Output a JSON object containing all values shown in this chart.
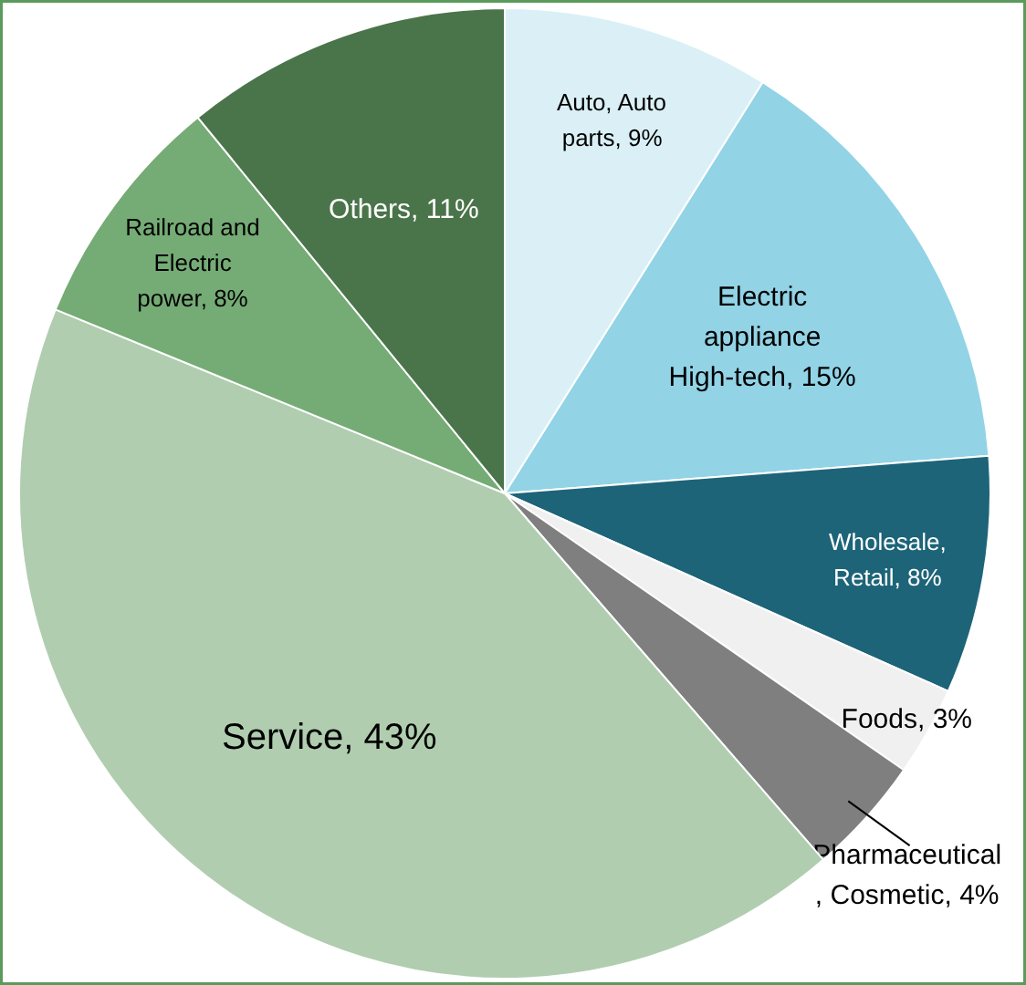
{
  "chart_data": {
    "type": "pie",
    "categories": [
      "Auto, Auto parts",
      "Electric appliance High-tech",
      "Wholesale, Retail",
      "Foods",
      "Pharmaceutical, Cosmetic",
      "Service",
      "Railroad and Electric power",
      "Others"
    ],
    "values": [
      9,
      15,
      8,
      3,
      4,
      43,
      8,
      11
    ],
    "value_labels": [
      "9%",
      "15%",
      "8%",
      "3%",
      "4%",
      "43%",
      "8%",
      "11%"
    ],
    "colors": [
      "#daf0f6",
      "#92d3e6",
      "#1d6478",
      "#f0f0f0",
      "#7f7f7f",
      "#b0cdb0",
      "#75ab75",
      "#4a7449"
    ]
  }
}
